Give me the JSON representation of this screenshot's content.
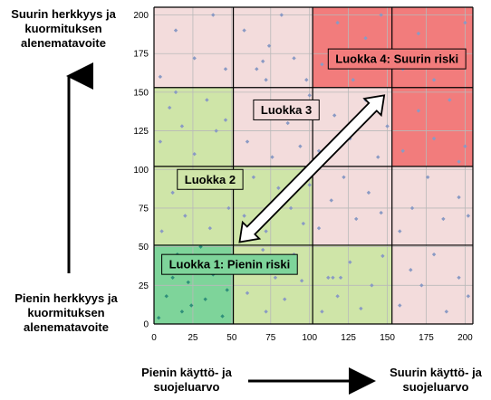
{
  "labels": {
    "y_top": "Suurin herkkyys ja kuormituksen alenematavoite",
    "y_bottom": "Pienin herkkyys ja kuormituksen alenematavoite",
    "x_left": "Pienin käyttö- ja suojeluarvo",
    "x_right": "Suurin käyttö- ja suojeluarvo"
  },
  "chart_data": {
    "type": "scatter",
    "title": "",
    "xlabel": "",
    "ylabel": "",
    "xlim": [
      0,
      205
    ],
    "ylim": [
      0,
      205
    ],
    "x_ticks": [
      0,
      25,
      50,
      75,
      100,
      125,
      150,
      175,
      200
    ],
    "y_ticks": [
      0,
      25,
      50,
      75,
      100,
      125,
      150,
      175,
      200
    ],
    "grid": true,
    "cell_boundaries_x": [
      0,
      51,
      102,
      153,
      205
    ],
    "cell_boundaries_y": [
      0,
      51,
      102,
      153,
      205
    ],
    "cell_class_matrix_bottom_to_top": [
      [
        1,
        2,
        2,
        3
      ],
      [
        2,
        2,
        3,
        3
      ],
      [
        2,
        3,
        3,
        4
      ],
      [
        3,
        3,
        4,
        4
      ]
    ],
    "class_colors": {
      "1": "#7ed49a",
      "2": "#cfe5a8",
      "3": "#f3dcdc",
      "4": "#f27c7c"
    },
    "marker_color": "#8a9ac4",
    "marker_color_dark": "#2f8f7a",
    "classes": [
      {
        "label": "Luokka 1: Pienin riski",
        "x": 5,
        "y": 45
      },
      {
        "label": "Luokka 2",
        "x": 15,
        "y": 100
      },
      {
        "label": "Luokka 3",
        "x": 64,
        "y": 145
      },
      {
        "label": "Luokka 4: Suurin riski",
        "x": 112,
        "y": 178
      }
    ],
    "arrow": {
      "from": [
        55,
        53
      ],
      "to": [
        148,
        148
      ],
      "bidirectional": true
    },
    "points": [
      [
        3,
        4
      ],
      [
        8,
        18
      ],
      [
        12,
        30
      ],
      [
        18,
        8
      ],
      [
        22,
        27
      ],
      [
        27,
        40
      ],
      [
        33,
        16
      ],
      [
        38,
        32
      ],
      [
        44,
        5
      ],
      [
        47,
        22
      ],
      [
        15,
        45
      ],
      [
        30,
        50
      ],
      [
        41,
        44
      ],
      [
        6,
        36
      ],
      [
        24,
        12
      ],
      [
        60,
        20
      ],
      [
        66,
        40
      ],
      [
        72,
        8
      ],
      [
        78,
        30
      ],
      [
        84,
        16
      ],
      [
        90,
        45
      ],
      [
        95,
        28
      ],
      [
        70,
        48
      ],
      [
        108,
        8
      ],
      [
        112,
        30
      ],
      [
        118,
        18
      ],
      [
        126,
        40
      ],
      [
        133,
        10
      ],
      [
        140,
        25
      ],
      [
        147,
        44
      ],
      [
        120,
        30
      ],
      [
        115,
        30
      ],
      [
        158,
        12
      ],
      [
        165,
        35
      ],
      [
        172,
        25
      ],
      [
        180,
        45
      ],
      [
        188,
        8
      ],
      [
        196,
        30
      ],
      [
        202,
        18
      ],
      [
        5,
        60
      ],
      [
        12,
        85
      ],
      [
        20,
        70
      ],
      [
        28,
        95
      ],
      [
        36,
        62
      ],
      [
        44,
        88
      ],
      [
        48,
        75
      ],
      [
        16,
        90
      ],
      [
        58,
        70
      ],
      [
        64,
        95
      ],
      [
        72,
        60
      ],
      [
        80,
        88
      ],
      [
        88,
        75
      ],
      [
        96,
        65
      ],
      [
        100,
        90
      ],
      [
        106,
        62
      ],
      [
        114,
        80
      ],
      [
        122,
        95
      ],
      [
        130,
        68
      ],
      [
        138,
        85
      ],
      [
        146,
        72
      ],
      [
        158,
        60
      ],
      [
        166,
        75
      ],
      [
        176,
        95
      ],
      [
        186,
        68
      ],
      [
        196,
        82
      ],
      [
        202,
        70
      ],
      [
        4,
        118
      ],
      [
        10,
        140
      ],
      [
        18,
        128
      ],
      [
        26,
        110
      ],
      [
        34,
        145
      ],
      [
        40,
        125
      ],
      [
        46,
        132
      ],
      [
        14,
        150
      ],
      [
        60,
        118
      ],
      [
        68,
        140
      ],
      [
        76,
        108
      ],
      [
        86,
        130
      ],
      [
        94,
        115
      ],
      [
        100,
        148
      ],
      [
        106,
        112
      ],
      [
        116,
        135
      ],
      [
        126,
        120
      ],
      [
        136,
        145
      ],
      [
        144,
        108
      ],
      [
        150,
        128
      ],
      [
        160,
        112
      ],
      [
        170,
        138
      ],
      [
        180,
        120
      ],
      [
        190,
        145
      ],
      [
        200,
        115
      ],
      [
        196,
        105
      ],
      [
        4,
        160
      ],
      [
        14,
        190
      ],
      [
        26,
        172
      ],
      [
        38,
        200
      ],
      [
        46,
        165
      ],
      [
        58,
        190
      ],
      [
        66,
        165
      ],
      [
        74,
        180
      ],
      [
        82,
        200
      ],
      [
        90,
        172
      ],
      [
        98,
        158
      ],
      [
        72,
        158
      ],
      [
        70,
        170
      ],
      [
        108,
        168
      ],
      [
        118,
        195
      ],
      [
        128,
        158
      ],
      [
        136,
        185
      ],
      [
        146,
        200
      ],
      [
        160,
        165
      ],
      [
        170,
        188
      ],
      [
        180,
        158
      ],
      [
        190,
        175
      ],
      [
        200,
        195
      ]
    ]
  }
}
